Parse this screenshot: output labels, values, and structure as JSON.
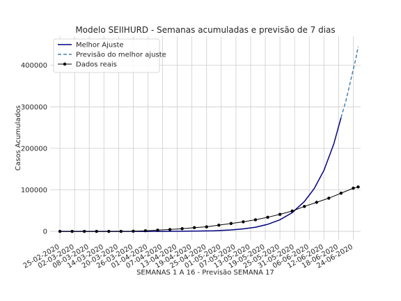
{
  "chart_data": {
    "type": "line",
    "title": "Modelo SEIIHURD - Semanas acumuladas e previsão de 7 dias",
    "xlabel": "SEMANAS 1 A 16 - Previsão SEMANA 17",
    "ylabel": "Casos Acumulados",
    "xlim": [
      "2020-02-21",
      "2020-06-27"
    ],
    "ylim": [
      -20000,
      470000
    ],
    "yticks": [
      0,
      100000,
      200000,
      300000,
      400000
    ],
    "xtick_dates": [
      "2020-02-25",
      "2020-03-02",
      "2020-03-08",
      "2020-03-14",
      "2020-03-20",
      "2020-03-26",
      "2020-04-01",
      "2020-04-07",
      "2020-04-13",
      "2020-04-19",
      "2020-04-25",
      "2020-05-01",
      "2020-05-07",
      "2020-05-13",
      "2020-05-19",
      "2020-05-25",
      "2020-05-31",
      "2020-06-06",
      "2020-06-12",
      "2020-06-18",
      "2020-06-24"
    ],
    "xtick_labels": [
      "25-02-2020",
      "02-03-2020",
      "08-03-2020",
      "14-03-2020",
      "20-03-2020",
      "26-03-2020",
      "01-04-2020",
      "07-04-2020",
      "13-04-2020",
      "19-04-2020",
      "25-04-2020",
      "01-05-2020",
      "07-05-2020",
      "13-05-2020",
      "19-05-2020",
      "25-05-2020",
      "31-05-2020",
      "06-06-2020",
      "12-06-2020",
      "18-06-2020",
      "24-06-2020"
    ],
    "grid": true,
    "legend": "top-left",
    "series": [
      {
        "name": "Melhor Ajuste",
        "style": "solid",
        "color": "#000080",
        "x": [
          "2020-02-25",
          "2020-03-03",
          "2020-03-10",
          "2020-03-17",
          "2020-03-24",
          "2020-03-31",
          "2020-04-07",
          "2020-04-14",
          "2020-04-21",
          "2020-04-28",
          "2020-05-05",
          "2020-05-10",
          "2020-05-15",
          "2020-05-20",
          "2020-05-25",
          "2020-05-30",
          "2020-06-04",
          "2020-06-08",
          "2020-06-12",
          "2020-06-16",
          "2020-06-19"
        ],
        "y": [
          0,
          0,
          0,
          0,
          0,
          0,
          0,
          300,
          700,
          1500,
          3500,
          6000,
          10000,
          17000,
          28000,
          45000,
          72000,
          103000,
          147000,
          210000,
          274000
        ]
      },
      {
        "name": "Previsão do melhor ajuste",
        "style": "dashed",
        "color": "#4682b4",
        "x": [
          "2020-06-19",
          "2020-06-21",
          "2020-06-23",
          "2020-06-25",
          "2020-06-26"
        ],
        "y": [
          274000,
          315000,
          365000,
          415000,
          445000
        ]
      },
      {
        "name": "Dados reais",
        "style": "solid-markers",
        "color": "#000000",
        "x": [
          "2020-02-25",
          "2020-03-01",
          "2020-03-06",
          "2020-03-11",
          "2020-03-16",
          "2020-03-21",
          "2020-03-26",
          "2020-03-31",
          "2020-04-05",
          "2020-04-10",
          "2020-04-15",
          "2020-04-20",
          "2020-04-25",
          "2020-04-30",
          "2020-05-05",
          "2020-05-10",
          "2020-05-15",
          "2020-05-20",
          "2020-05-25",
          "2020-05-30",
          "2020-06-04",
          "2020-06-09",
          "2020-06-14",
          "2020-06-19",
          "2020-06-24",
          "2020-06-26"
        ],
        "y": [
          0,
          0,
          0,
          0,
          0,
          0,
          400,
          1500,
          3000,
          4500,
          6500,
          9000,
          11000,
          15000,
          19000,
          23000,
          28000,
          34000,
          41000,
          49000,
          60000,
          70000,
          80000,
          92000,
          104000,
          107000
        ]
      }
    ]
  }
}
